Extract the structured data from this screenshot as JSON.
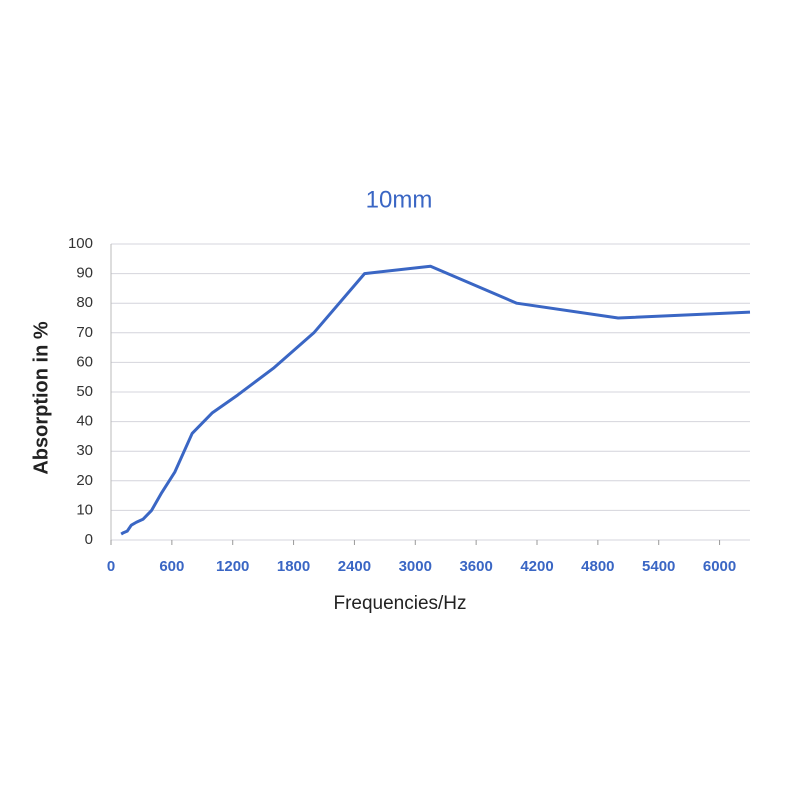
{
  "chart_data": {
    "type": "line",
    "title": "10mm",
    "x_label": "Frequencies/Hz",
    "y_label": "Absorption in %",
    "x": [
      100,
      125,
      160,
      200,
      250,
      315,
      400,
      500,
      630,
      800,
      1000,
      1250,
      1600,
      2000,
      2500,
      3150,
      4000,
      5000,
      6300
    ],
    "series": [
      {
        "name": "10mm",
        "color": "#3a66c4",
        "values": [
          2,
          2.5,
          3,
          5,
          6,
          7,
          10,
          16,
          23,
          36,
          43,
          49,
          58,
          70,
          90,
          92.5,
          80,
          75,
          77
        ]
      }
    ],
    "xlim": [
      0,
      6300
    ],
    "xticks": [
      0,
      600,
      1200,
      1800,
      2400,
      3000,
      3600,
      4200,
      4800,
      5400,
      6000
    ],
    "ylim": [
      0,
      100
    ],
    "yticks": [
      0,
      10,
      20,
      30,
      40,
      50,
      60,
      70,
      80,
      90,
      100
    ],
    "grid": true
  }
}
